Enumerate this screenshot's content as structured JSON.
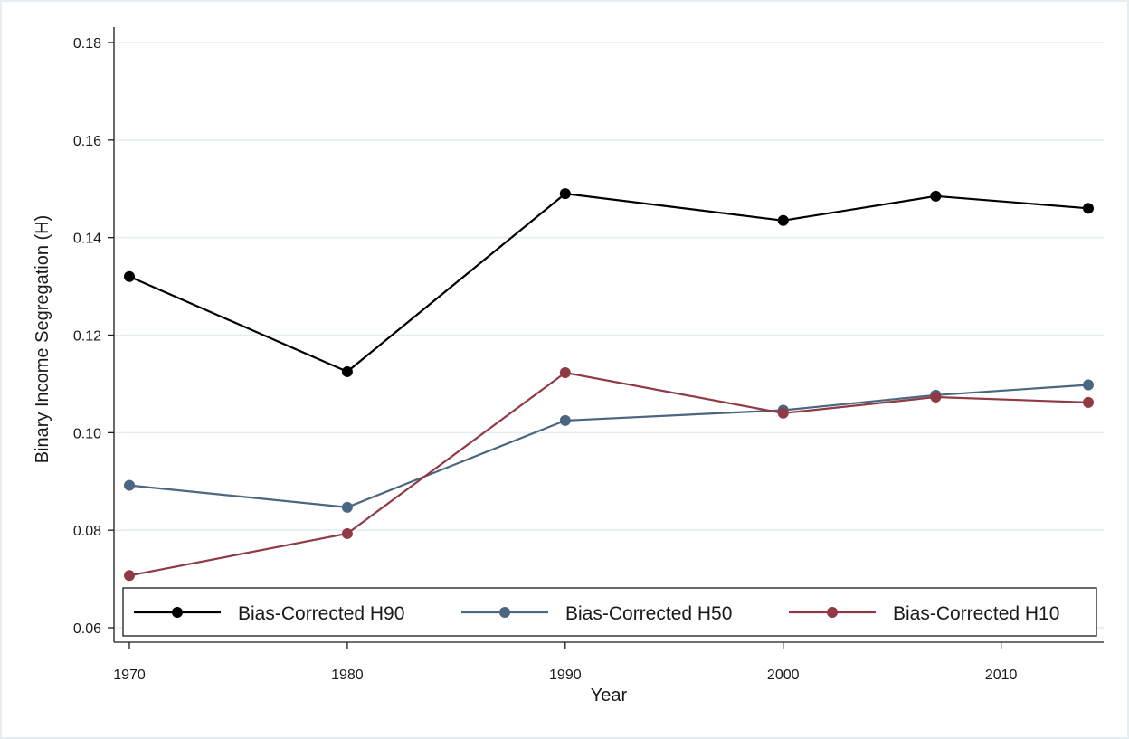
{
  "chart_data": {
    "type": "line",
    "xlabel": "Year",
    "ylabel": "Binary Income Segregation (H)",
    "xlim": [
      1970,
      2014
    ],
    "ylim": [
      0.06,
      0.18
    ],
    "xticks": [
      1970,
      1980,
      1990,
      2000,
      2010
    ],
    "xtick_labels": [
      "1970",
      "1980",
      "1990",
      "2000",
      "2010"
    ],
    "yticks": [
      0.06,
      0.08,
      0.1,
      0.12,
      0.14,
      0.16,
      0.18
    ],
    "ytick_labels": [
      "0.06",
      "0.08",
      "0.10",
      "0.12",
      "0.14",
      "0.16",
      "0.18"
    ],
    "grid": "horizontal",
    "legend_position": "bottom",
    "x": [
      1970,
      1980,
      1990,
      2000,
      2007,
      2014
    ],
    "series": [
      {
        "name": "Bias-Corrected H90",
        "color": "#000000",
        "values": [
          0.132,
          0.1125,
          0.149,
          0.1435,
          0.1485,
          0.146
        ]
      },
      {
        "name": "Bias-Corrected H50",
        "color": "#4a6680",
        "values": [
          0.0892,
          0.0847,
          0.1025,
          0.1046,
          0.1077,
          0.1098
        ]
      },
      {
        "name": "Bias-Corrected H10",
        "color": "#903a45",
        "values": [
          0.0707,
          0.0793,
          0.1123,
          0.104,
          0.1073,
          0.1062
        ]
      }
    ]
  }
}
